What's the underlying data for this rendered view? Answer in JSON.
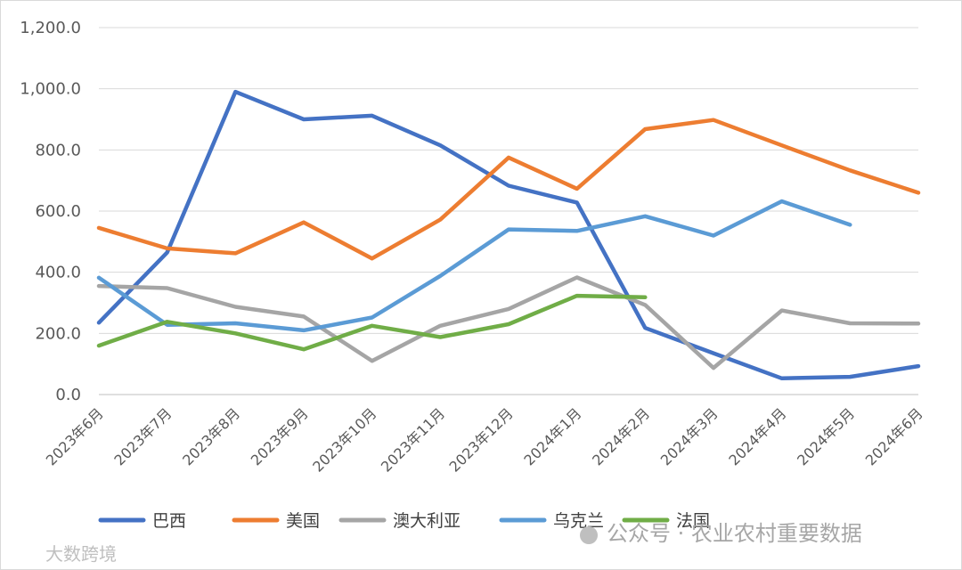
{
  "chart_data": {
    "type": "line",
    "categories": [
      "2023年6月",
      "2023年7月",
      "2023年8月",
      "2023年9月",
      "2023年10月",
      "2023年11月",
      "2023年12月",
      "2024年1月",
      "2024年2月",
      "2024年3月",
      "2024年4月",
      "2024年5月",
      "2024年6月"
    ],
    "ylim": [
      0,
      1200
    ],
    "yticks": [
      0,
      200,
      400,
      600,
      800,
      1000,
      1200
    ],
    "ytick_labels": [
      "0.0",
      "200.0",
      "400.0",
      "600.0",
      "800.0",
      "1,000.0",
      "1,200.0"
    ],
    "grid": true,
    "legend_position": "bottom",
    "series": [
      {
        "name": "巴西",
        "color": "#4472c4",
        "values": [
          235,
          465,
          990,
          900,
          912,
          815,
          683,
          628,
          218,
          135,
          53,
          58,
          93
        ]
      },
      {
        "name": "美国",
        "color": "#ed7d31",
        "values": [
          545,
          478,
          462,
          563,
          445,
          572,
          775,
          673,
          868,
          898,
          815,
          733,
          660
        ]
      },
      {
        "name": "澳大利亚",
        "color": "#a5a5a5",
        "values": [
          355,
          348,
          287,
          255,
          110,
          225,
          280,
          383,
          293,
          87,
          275,
          233,
          232
        ]
      },
      {
        "name": "乌克兰",
        "color": "#5b9bd5",
        "values": [
          382,
          228,
          233,
          210,
          252,
          388,
          540,
          535,
          583,
          520,
          632,
          555,
          null
        ]
      },
      {
        "name": "法国",
        "color": "#70ad47",
        "values": [
          160,
          238,
          200,
          148,
          225,
          188,
          230,
          323,
          318,
          null,
          null,
          null,
          null
        ]
      }
    ]
  },
  "watermark": {
    "left": "大数跨境",
    "right": "公众号 · 农业农村重要数据"
  }
}
